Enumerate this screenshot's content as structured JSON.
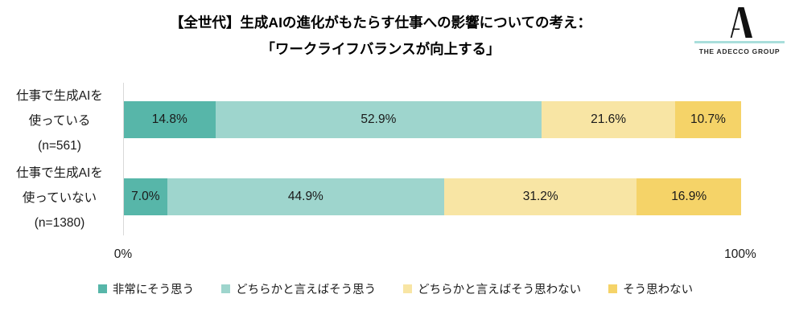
{
  "title": {
    "line1": "【全世代】生成AIの進化がもたらす仕事への影響についての考え：",
    "line2": "「ワークライフバランスが向上する」"
  },
  "logo": {
    "text": "THE ADECCO GROUP",
    "line_color": "#a9dedb",
    "mark_color": "#111111"
  },
  "chart_data": {
    "type": "bar",
    "stacked": true,
    "orientation": "horizontal",
    "grid": false,
    "xlim": [
      0,
      100
    ],
    "x_axis_labels": [
      "0%",
      "100%"
    ],
    "value_suffix": "%",
    "legend_position": "bottom",
    "series": [
      {
        "name": "非常にそう思う",
        "color": "#57b6a9"
      },
      {
        "name": "どちらかと言えばそう思う",
        "color": "#9ed5cd"
      },
      {
        "name": "どちらかと言えばそう思わない",
        "color": "#f8e5a4"
      },
      {
        "name": "そう思わない",
        "color": "#f5d368"
      }
    ],
    "groups": [
      {
        "label_lines": [
          "仕事で生成AIを",
          "使っている",
          "(n=561)"
        ],
        "values": [
          14.8,
          52.9,
          21.6,
          10.7
        ]
      },
      {
        "label_lines": [
          "仕事で生成AIを",
          "使っていない",
          "(n=1380)"
        ],
        "values": [
          7.0,
          44.9,
          31.2,
          16.9
        ]
      }
    ]
  }
}
